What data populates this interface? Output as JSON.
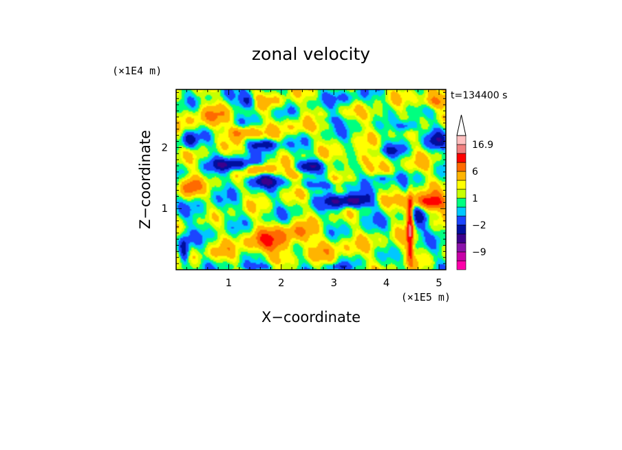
{
  "chart_data": {
    "type": "heatmap",
    "title": "zonal velocity",
    "xlabel": "X−coordinate",
    "ylabel": "Z−coordinate",
    "x_unit": "(×1E5 m)",
    "y_unit": "(×1E4 m)",
    "time_label": "t=134400 s",
    "xlim": [
      0,
      5.13
    ],
    "ylim": [
      0,
      2.95
    ],
    "x_ticks": [
      1,
      2,
      3,
      4,
      5
    ],
    "y_ticks": [
      1,
      2
    ],
    "x_tick_labels": [
      "1",
      "2",
      "3",
      "4",
      "5"
    ],
    "y_tick_labels": [
      "1",
      "2"
    ],
    "colorbar": {
      "levels": [
        -15,
        -12,
        -9,
        -6,
        -4,
        -2,
        -1,
        0,
        1,
        2,
        4,
        6,
        9,
        12,
        16.9
      ],
      "labeled_levels": [
        {
          "value": 16.9,
          "label": "16.9"
        },
        {
          "value": 6,
          "label": "6"
        },
        {
          "value": 1,
          "label": "1"
        },
        {
          "value": -2,
          "label": "−2"
        },
        {
          "value": -9,
          "label": "−9"
        }
      ],
      "colors": [
        "#ff00aa",
        "#c800a8",
        "#8a12aa",
        "#3c008c",
        "#000f9f",
        "#1b45ff",
        "#00c8ff",
        "#00ff80",
        "#c8ff00",
        "#ffff00",
        "#ffb400",
        "#ff6a00",
        "#ff0000",
        "#f08080",
        "#ffc0c0"
      ],
      "extend": "max"
    },
    "grid": false,
    "features": [
      {
        "x": 1.1,
        "z": 1.72,
        "rx": 0.4,
        "rz": 0.1,
        "value": -6
      },
      {
        "x": 1.65,
        "z": 1.45,
        "rx": 0.35,
        "rz": 0.1,
        "value": -5
      },
      {
        "x": 3.3,
        "z": 1.12,
        "rx": 0.45,
        "rz": 0.11,
        "value": -7
      },
      {
        "x": 2.9,
        "z": 1.38,
        "rx": 0.5,
        "rz": 0.08,
        "value": -3
      },
      {
        "x": 2.55,
        "z": 1.7,
        "rx": 0.25,
        "rz": 0.1,
        "value": -5
      },
      {
        "x": 0.25,
        "z": 2.12,
        "rx": 0.15,
        "rz": 0.14,
        "value": -5
      },
      {
        "x": 1.7,
        "z": 2.05,
        "rx": 0.3,
        "rz": 0.08,
        "value": -5
      },
      {
        "x": 1.35,
        "z": 2.75,
        "rx": 0.15,
        "rz": 0.12,
        "value": -5
      },
      {
        "x": 4.4,
        "z": 2.35,
        "rx": 0.2,
        "rz": 0.1,
        "value": -5
      },
      {
        "x": 4.95,
        "z": 2.1,
        "rx": 0.2,
        "rz": 0.15,
        "value": -4
      },
      {
        "x": 3.9,
        "z": 1.5,
        "rx": 0.3,
        "rz": 0.08,
        "value": -3
      },
      {
        "x": 4.1,
        "z": 1.95,
        "rx": 0.2,
        "rz": 0.08,
        "value": -3
      },
      {
        "x": 1.6,
        "z": 0.05,
        "rx": 0.5,
        "rz": 0.06,
        "value": -3
      },
      {
        "x": 3.05,
        "z": 0.05,
        "rx": 0.2,
        "rz": 0.05,
        "value": -3
      },
      {
        "x": 2.9,
        "z": 2.45,
        "rx": 0.35,
        "rz": 0.08,
        "value": -2
      },
      {
        "x": 3.3,
        "z": 2.8,
        "rx": 0.3,
        "rz": 0.12,
        "value": -2
      },
      {
        "x": 0.55,
        "z": 0.95,
        "rx": 0.35,
        "rz": 0.35,
        "value": -1
      },
      {
        "x": 3.6,
        "z": 0.85,
        "rx": 0.3,
        "rz": 0.12,
        "value": -1
      },
      {
        "x": 1.8,
        "z": 0.45,
        "rx": 0.5,
        "rz": 0.22,
        "value": 5
      },
      {
        "x": 2.3,
        "z": 0.6,
        "rx": 0.3,
        "rz": 0.15,
        "value": 3
      },
      {
        "x": 4.8,
        "z": 1.1,
        "rx": 0.35,
        "rz": 0.14,
        "value": 8
      },
      {
        "x": 0.25,
        "z": 1.35,
        "rx": 0.2,
        "rz": 0.18,
        "value": 5
      },
      {
        "x": 1.3,
        "z": 2.25,
        "rx": 0.3,
        "rz": 0.1,
        "value": 5
      },
      {
        "x": 1.6,
        "z": 1.65,
        "rx": 0.25,
        "rz": 0.08,
        "value": 5
      },
      {
        "x": 4.9,
        "z": 2.75,
        "rx": 0.3,
        "rz": 0.12,
        "value": 5
      },
      {
        "x": 2.3,
        "z": 1.55,
        "rx": 0.3,
        "rz": 0.08,
        "value": 3
      },
      {
        "x": 0.6,
        "z": 2.5,
        "rx": 0.4,
        "rz": 0.2,
        "value": 3
      },
      {
        "x": 3.5,
        "z": 1.8,
        "rx": 0.3,
        "rz": 0.15,
        "value": 3
      },
      {
        "x": 2.3,
        "z": 2.35,
        "rx": 0.35,
        "rz": 0.15,
        "value": 2
      },
      {
        "x": 3.8,
        "z": 2.5,
        "rx": 0.3,
        "rz": 0.12,
        "value": 2
      },
      {
        "x": 4.6,
        "z": 1.7,
        "rx": 0.25,
        "rz": 0.12,
        "value": 1.5
      },
      {
        "x": 3.0,
        "z": 0.35,
        "rx": 0.5,
        "rz": 0.2,
        "value": 2
      },
      {
        "x": 4.2,
        "z": 0.4,
        "rx": 0.3,
        "rz": 0.18,
        "value": 1.5
      },
      {
        "x": 0.8,
        "z": 0.25,
        "rx": 0.4,
        "rz": 0.15,
        "value": 1.5
      },
      {
        "x": 3.9,
        "z": 1.15,
        "rx": 0.2,
        "rz": 0.1,
        "value": 2
      },
      {
        "x": 1.9,
        "z": 2.75,
        "rx": 0.3,
        "rz": 0.12,
        "value": 2
      },
      {
        "x": 4.6,
        "z": 0.85,
        "rx": 0.15,
        "rz": 0.25,
        "value": -4
      },
      {
        "x": 0.15,
        "z": 0.3,
        "rx": 0.1,
        "rz": 0.25,
        "value": -6
      },
      {
        "x": 4.45,
        "z": 0.7,
        "rx": 0.06,
        "rz": 0.55,
        "value": 9
      }
    ]
  }
}
